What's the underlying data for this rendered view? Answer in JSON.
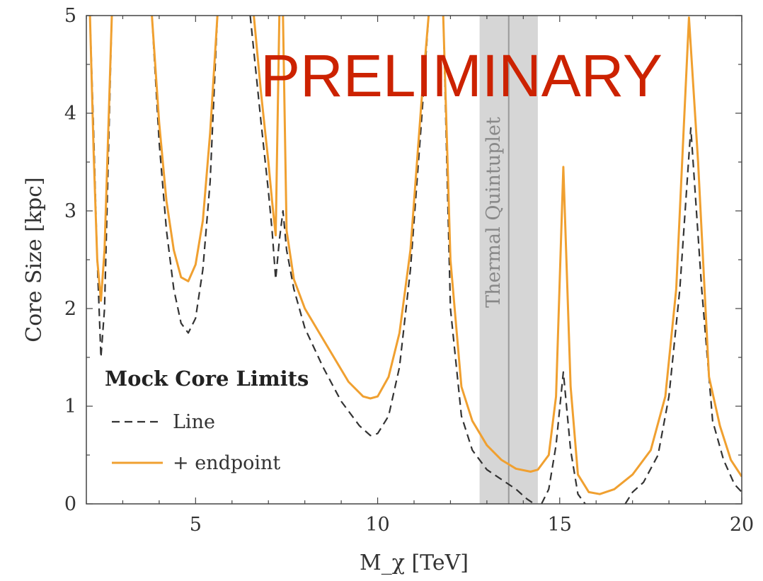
{
  "chart_data": {
    "type": "line",
    "xlabel": "M_χ [TeV]",
    "ylabel": "Core Size [kpc]",
    "xlim": [
      2,
      20
    ],
    "ylim": [
      0,
      5
    ],
    "xticks": [
      5,
      10,
      15,
      20
    ],
    "yticks": [
      0,
      1,
      2,
      3,
      4,
      5
    ],
    "legend": {
      "title": "Mock Core Limits",
      "placement": "lower-left"
    },
    "band": {
      "label": "Thermal Quintuplet",
      "x_range": [
        12.8,
        14.4
      ],
      "center": 13.6
    },
    "watermark": "PRELIMINARY",
    "series": [
      {
        "name": "Line",
        "style": "dashed",
        "color": "#333333",
        "segments": [
          [
            [
              2.1,
              5.0
            ],
            [
              2.2,
              3.8
            ],
            [
              2.3,
              2.5
            ],
            [
              2.4,
              1.5
            ],
            [
              2.5,
              2.0
            ],
            [
              2.6,
              3.5
            ],
            [
              2.7,
              5.0
            ]
          ],
          [
            [
              3.8,
              5.0
            ],
            [
              4.0,
              3.7
            ],
            [
              4.2,
              2.8
            ],
            [
              4.4,
              2.2
            ],
            [
              4.6,
              1.85
            ],
            [
              4.8,
              1.75
            ],
            [
              5.0,
              1.9
            ],
            [
              5.2,
              2.4
            ],
            [
              5.4,
              3.3
            ],
            [
              5.6,
              5.0
            ]
          ],
          [
            [
              6.5,
              5.0
            ],
            [
              6.8,
              3.9
            ],
            [
              7.0,
              3.2
            ],
            [
              7.1,
              2.8
            ],
            [
              7.2,
              2.3
            ],
            [
              7.3,
              2.7
            ],
            [
              7.4,
              3.0
            ],
            [
              7.5,
              2.6
            ],
            [
              7.7,
              2.2
            ],
            [
              8.0,
              1.8
            ],
            [
              8.5,
              1.4
            ],
            [
              9.0,
              1.05
            ],
            [
              9.5,
              0.8
            ],
            [
              9.8,
              0.7
            ],
            [
              10.0,
              0.72
            ],
            [
              10.3,
              0.9
            ],
            [
              10.6,
              1.4
            ],
            [
              10.9,
              2.4
            ],
            [
              11.2,
              3.9
            ],
            [
              11.4,
              5.0
            ]
          ],
          [
            [
              11.8,
              5.0
            ],
            [
              12.0,
              2.0
            ],
            [
              12.3,
              0.9
            ],
            [
              12.6,
              0.55
            ],
            [
              13.0,
              0.35
            ],
            [
              13.4,
              0.25
            ],
            [
              13.8,
              0.15
            ],
            [
              14.1,
              0.05
            ],
            [
              14.3,
              0.0
            ]
          ],
          [
            [
              14.5,
              0.0
            ],
            [
              14.7,
              0.15
            ],
            [
              14.9,
              0.6
            ],
            [
              15.1,
              1.35
            ],
            [
              15.3,
              0.55
            ],
            [
              15.5,
              0.1
            ],
            [
              15.7,
              0.0
            ]
          ],
          [
            [
              16.8,
              0.0
            ],
            [
              17.0,
              0.12
            ],
            [
              17.3,
              0.22
            ],
            [
              17.7,
              0.5
            ],
            [
              18.0,
              1.1
            ],
            [
              18.3,
              2.2
            ],
            [
              18.6,
              3.85
            ],
            [
              18.9,
              2.2
            ],
            [
              19.2,
              0.85
            ],
            [
              19.5,
              0.45
            ],
            [
              19.8,
              0.2
            ],
            [
              20.0,
              0.12
            ]
          ]
        ]
      },
      {
        "name": "+ endpoint",
        "style": "solid",
        "color": "#f0a030",
        "segments": [
          [
            [
              2.1,
              5.0
            ],
            [
              2.2,
              3.6
            ],
            [
              2.3,
              2.5
            ],
            [
              2.4,
              2.08
            ],
            [
              2.5,
              2.6
            ],
            [
              2.6,
              3.8
            ],
            [
              2.7,
              5.0
            ]
          ],
          [
            [
              3.8,
              5.0
            ],
            [
              4.0,
              3.9
            ],
            [
              4.2,
              3.1
            ],
            [
              4.4,
              2.6
            ],
            [
              4.6,
              2.32
            ],
            [
              4.8,
              2.28
            ],
            [
              5.0,
              2.45
            ],
            [
              5.2,
              2.9
            ],
            [
              5.4,
              3.8
            ],
            [
              5.6,
              5.0
            ]
          ],
          [
            [
              6.6,
              5.0
            ],
            [
              6.8,
              4.2
            ],
            [
              7.0,
              3.5
            ],
            [
              7.1,
              3.1
            ],
            [
              7.2,
              2.75
            ],
            [
              7.3,
              5.0
            ]
          ],
          [
            [
              7.4,
              5.0
            ],
            [
              7.5,
              2.8
            ],
            [
              7.7,
              2.3
            ],
            [
              8.0,
              2.0
            ],
            [
              8.4,
              1.75
            ],
            [
              8.8,
              1.5
            ],
            [
              9.2,
              1.25
            ],
            [
              9.6,
              1.1
            ],
            [
              9.8,
              1.08
            ],
            [
              10.0,
              1.1
            ],
            [
              10.3,
              1.3
            ],
            [
              10.6,
              1.75
            ],
            [
              10.9,
              2.6
            ],
            [
              11.2,
              4.1
            ],
            [
              11.4,
              5.0
            ]
          ],
          [
            [
              11.8,
              5.0
            ],
            [
              12.0,
              2.5
            ],
            [
              12.3,
              1.2
            ],
            [
              12.6,
              0.85
            ],
            [
              13.0,
              0.6
            ],
            [
              13.4,
              0.45
            ],
            [
              13.8,
              0.36
            ],
            [
              14.2,
              0.33
            ],
            [
              14.4,
              0.35
            ],
            [
              14.7,
              0.5
            ],
            [
              14.9,
              1.1
            ],
            [
              15.1,
              3.45
            ],
            [
              15.3,
              1.2
            ],
            [
              15.5,
              0.3
            ],
            [
              15.8,
              0.12
            ],
            [
              16.1,
              0.1
            ],
            [
              16.5,
              0.15
            ],
            [
              17.0,
              0.3
            ],
            [
              17.5,
              0.55
            ],
            [
              17.9,
              1.1
            ],
            [
              18.2,
              2.2
            ],
            [
              18.4,
              3.8
            ],
            [
              18.55,
              4.98
            ],
            [
              18.8,
              3.5
            ],
            [
              19.1,
              1.3
            ],
            [
              19.4,
              0.8
            ],
            [
              19.7,
              0.45
            ],
            [
              20.0,
              0.28
            ]
          ]
        ]
      }
    ]
  }
}
